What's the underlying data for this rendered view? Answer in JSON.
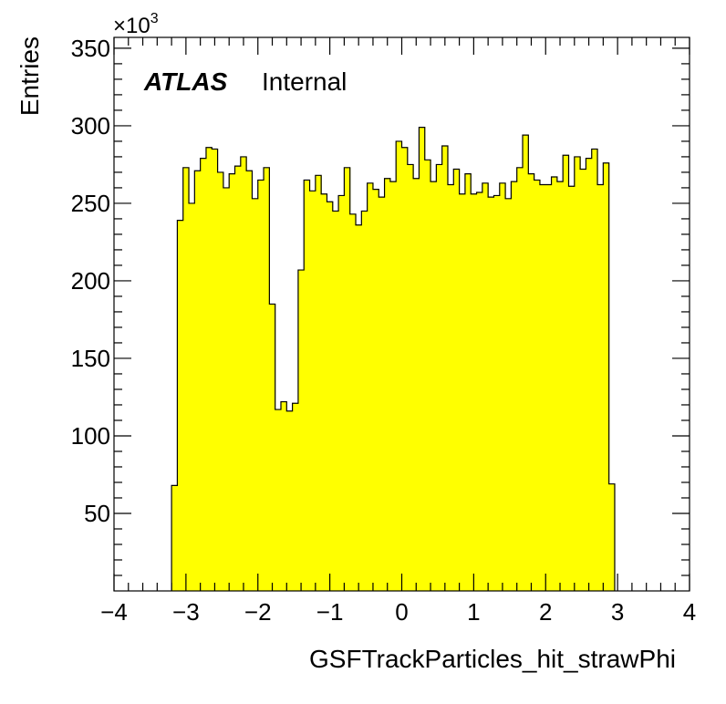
{
  "chart_data": {
    "type": "bar",
    "subtype": "histogram",
    "x_label": "GSFTrackParticles_hit_strawPhi",
    "y_label": "Entries",
    "y_multiplier": "×10",
    "y_multiplier_exp": "3",
    "xlim": [
      -4,
      4
    ],
    "ylim": [
      0,
      357
    ],
    "x_ticks": [
      -4,
      -3,
      -2,
      -1,
      0,
      1,
      2,
      3,
      4
    ],
    "x_tick_labels": [
      "−4",
      "−3",
      "−2",
      "−1",
      "0",
      "1",
      "2",
      "3",
      "4"
    ],
    "y_ticks": [
      50,
      100,
      150,
      200,
      250,
      300,
      350
    ],
    "y_tick_labels": [
      "50",
      "100",
      "150",
      "200",
      "250",
      "300",
      "350"
    ],
    "fill_color": "#ffff00",
    "line_color": "#000000",
    "bin_start": -3.2,
    "bin_width": 0.08,
    "values": [
      68,
      239,
      273,
      250,
      271,
      279,
      286,
      285,
      270,
      260,
      269,
      274,
      280,
      271,
      253,
      265,
      273,
      185,
      117,
      122,
      116,
      121,
      207,
      265,
      258,
      268,
      256,
      251,
      245,
      255,
      273,
      243,
      236,
      245,
      263,
      259,
      254,
      266,
      264,
      290,
      286,
      275,
      266,
      299,
      278,
      264,
      275,
      287,
      262,
      272,
      256,
      269,
      256,
      257,
      263,
      254,
      255,
      263,
      253,
      264,
      273,
      294,
      269,
      265,
      262,
      262,
      267,
      264,
      281,
      261,
      280,
      272,
      279,
      285,
      262,
      276,
      69
    ],
    "annotation": {
      "brand": "ATLAS",
      "status": "Internal"
    }
  }
}
